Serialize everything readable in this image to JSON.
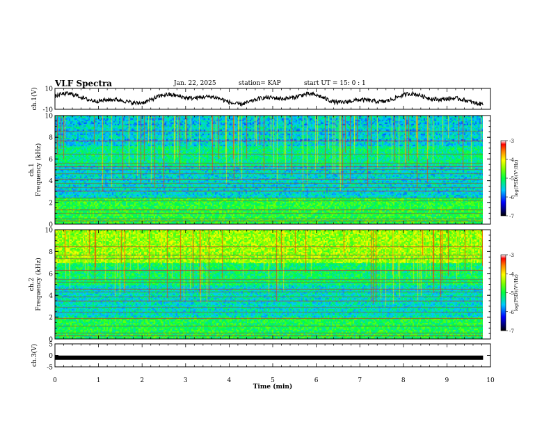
{
  "header": {
    "title": "VLF Spectra",
    "date": "Jan. 22, 2025",
    "station": "station= KAP",
    "start_ut": "start UT =  15: 0  : 1"
  },
  "chart_data": [
    {
      "type": "line",
      "panel": "ch1-waveform",
      "ylabel": "ch.1(V)",
      "ylim": [
        -10,
        10
      ],
      "yticks": [
        "10",
        "-10"
      ],
      "xlim": [
        0,
        10
      ],
      "x_data_end": 9.83,
      "color": "#000000",
      "note_values": "y range of trace approximately between -8 and 9 V"
    },
    {
      "type": "heatmap",
      "panel": "ch1-spectrogram",
      "ylabel": "ch.1\nFrequency (kHz)",
      "ylim": [
        0,
        10
      ],
      "yticks": [
        "0",
        "2",
        "4",
        "6",
        "8",
        "10"
      ],
      "xlim": [
        0,
        10
      ],
      "x_data_end": 9.83,
      "colorbar": {
        "label": "log(PSD)(V²/Hz)",
        "range": [
          -7,
          -3
        ],
        "ticks": [
          "-3",
          "-4",
          "-5",
          "-6",
          "-7"
        ]
      },
      "horizontal_lines_khz": [
        0.3,
        0.5,
        1.0,
        1.35,
        2.2,
        2.45,
        3.05,
        3.4,
        3.8,
        4.15,
        4.7,
        5.05,
        5.35,
        5.65,
        6.5,
        7.7,
        8.6
      ]
    },
    {
      "type": "heatmap",
      "panel": "ch2-spectrogram",
      "ylabel": "ch.2\nFrequency (kHz)",
      "ylim": [
        0,
        10
      ],
      "yticks": [
        "0",
        "2",
        "4",
        "6",
        "8",
        "10"
      ],
      "xlim": [
        0,
        10
      ],
      "x_data_end": 9.83,
      "colorbar": {
        "label": "log(PSD)(V²/Hz)",
        "range": [
          -7,
          -3
        ],
        "ticks": [
          "-3",
          "-4",
          "-5",
          "-6",
          "-7"
        ]
      },
      "horizontal_lines_khz": [
        0.3,
        0.6,
        1.2,
        1.9,
        2.5,
        2.9,
        3.5,
        3.9,
        4.3,
        4.6,
        5.2,
        5.5,
        6.3,
        7.4,
        7.7,
        8.5
      ]
    },
    {
      "type": "line",
      "panel": "ch3-waveform",
      "ylabel": "ch.3(V)",
      "ylim": [
        -5,
        5
      ],
      "yticks": [
        "5",
        "0",
        "-5"
      ],
      "xlim": [
        0,
        10
      ],
      "x_data_end": 9.83,
      "constant_value": -1,
      "color": "#000000"
    }
  ],
  "xaxis": {
    "label": "Time (min)",
    "ticks": [
      "0",
      "1",
      "2",
      "3",
      "4",
      "5",
      "6",
      "7",
      "8",
      "9",
      "10"
    ]
  },
  "colors": {
    "axis": "#000000",
    "background": "#ffffff"
  }
}
